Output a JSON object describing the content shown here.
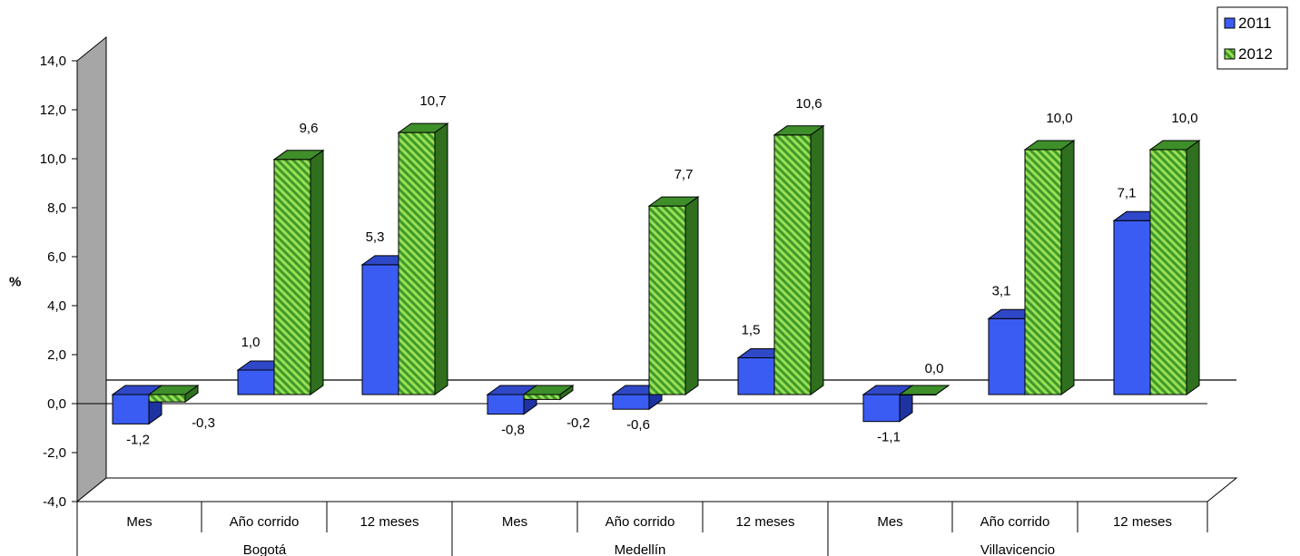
{
  "chart_data": {
    "type": "bar",
    "style": "3d-clustered",
    "ylabel": "%",
    "ylim": [
      -4,
      14
    ],
    "yticks": [
      "-4,0",
      "-2,0",
      "0,0",
      "2,0",
      "4,0",
      "6,0",
      "8,0",
      "10,0",
      "12,0",
      "14,0"
    ],
    "legend_position": "top-right",
    "groups": [
      "Bogotá",
      "Medellín",
      "Villavicencio"
    ],
    "categories": [
      "Mes",
      "Año corrido",
      "12 meses",
      "Mes",
      "Año corrido",
      "12 meses",
      "Mes",
      "Año corrido",
      "12 meses"
    ],
    "series": [
      {
        "name": "2011",
        "color": "#3b5cf2",
        "values": [
          -1.2,
          1.0,
          5.3,
          -0.8,
          -0.6,
          1.5,
          -1.1,
          3.1,
          7.1
        ],
        "labels": [
          "-1,2",
          "1,0",
          "5,3",
          "-0,8",
          "-0,6",
          "1,5",
          "-1,1",
          "3,1",
          "7,1"
        ]
      },
      {
        "name": "2012",
        "color": "#4caf35",
        "pattern": "diagonal-stripes",
        "values": [
          -0.3,
          9.6,
          10.7,
          -0.2,
          7.7,
          10.6,
          0.0,
          10.0,
          10.0
        ],
        "labels": [
          "-0,3",
          "9,6",
          "10,7",
          "-0,2",
          "7,7",
          "10,6",
          "0,0",
          "10,0",
          "10,0"
        ]
      }
    ]
  }
}
